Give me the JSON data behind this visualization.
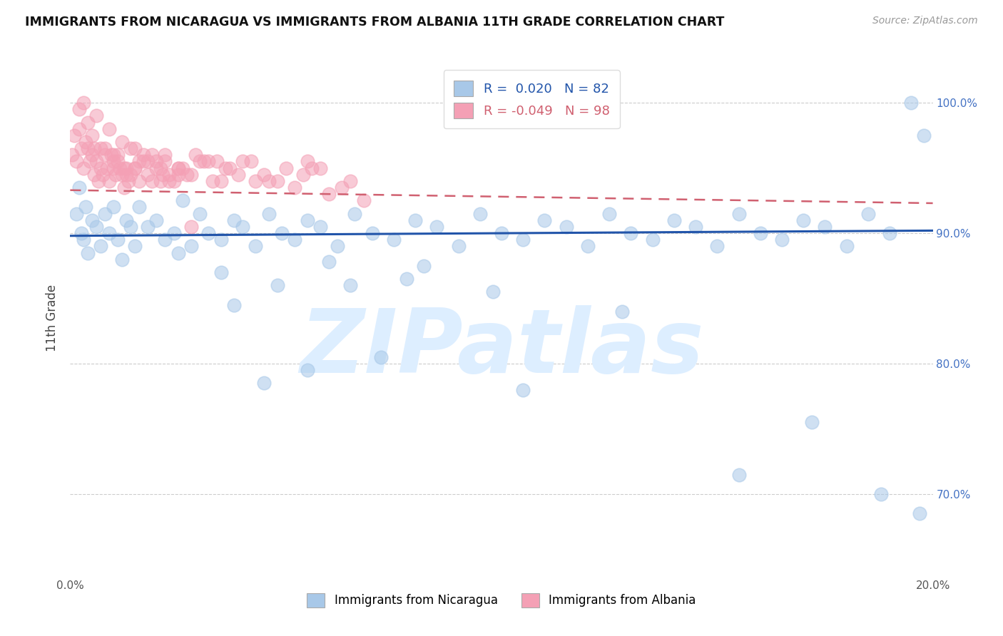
{
  "title": "IMMIGRANTS FROM NICARAGUA VS IMMIGRANTS FROM ALBANIA 11TH GRADE CORRELATION CHART",
  "source": "Source: ZipAtlas.com",
  "ylabel": "11th Grade",
  "color_nicaragua": "#a8c8e8",
  "color_albania": "#f4a0b5",
  "trendline_nicaragua_color": "#2255aa",
  "trendline_albania_color": "#d06070",
  "legend_label_nicaragua": "Immigrants from Nicaragua",
  "legend_label_albania": "Immigrants from Albania",
  "watermark": "ZIPatlas",
  "watermark_color": "#ddeeff",
  "xmin": 0.0,
  "xmax": 20.0,
  "ymin": 64.0,
  "ymax": 103.0,
  "yticks": [
    70.0,
    80.0,
    90.0,
    100.0
  ],
  "xticks": [
    0.0,
    20.0
  ],
  "nic_line_x0": 0.0,
  "nic_line_x1": 20.0,
  "nic_line_y0": 89.8,
  "nic_line_y1": 90.2,
  "alb_line_x0": 0.0,
  "alb_line_x1": 20.0,
  "alb_line_y0": 93.3,
  "alb_line_y1": 92.3,
  "nicaragua_x": [
    0.15,
    0.2,
    0.25,
    0.3,
    0.35,
    0.4,
    0.5,
    0.6,
    0.7,
    0.8,
    0.9,
    1.0,
    1.1,
    1.2,
    1.3,
    1.4,
    1.5,
    1.6,
    1.8,
    2.0,
    2.2,
    2.4,
    2.6,
    2.8,
    3.0,
    3.2,
    3.5,
    3.8,
    4.0,
    4.3,
    4.6,
    4.9,
    5.2,
    5.5,
    5.8,
    6.2,
    6.6,
    7.0,
    7.5,
    8.0,
    8.5,
    9.0,
    9.5,
    10.0,
    10.5,
    11.0,
    11.5,
    12.0,
    12.5,
    13.0,
    13.5,
    14.0,
    14.5,
    15.0,
    15.5,
    16.0,
    16.5,
    17.0,
    17.5,
    18.0,
    18.5,
    19.0,
    19.5,
    19.8,
    6.5,
    8.2,
    7.8,
    3.5,
    5.5,
    4.5,
    9.8,
    12.8,
    17.2,
    19.7,
    2.5,
    4.8,
    6.0,
    3.8,
    7.2,
    10.5,
    15.5,
    18.8
  ],
  "nicaragua_y": [
    91.5,
    93.5,
    90.0,
    89.5,
    92.0,
    88.5,
    91.0,
    90.5,
    89.0,
    91.5,
    90.0,
    92.0,
    89.5,
    88.0,
    91.0,
    90.5,
    89.0,
    92.0,
    90.5,
    91.0,
    89.5,
    90.0,
    92.5,
    89.0,
    91.5,
    90.0,
    89.5,
    91.0,
    90.5,
    89.0,
    91.5,
    90.0,
    89.5,
    91.0,
    90.5,
    89.0,
    91.5,
    90.0,
    89.5,
    91.0,
    90.5,
    89.0,
    91.5,
    90.0,
    89.5,
    91.0,
    90.5,
    89.0,
    91.5,
    90.0,
    89.5,
    91.0,
    90.5,
    89.0,
    91.5,
    90.0,
    89.5,
    91.0,
    90.5,
    89.0,
    91.5,
    90.0,
    100.0,
    97.5,
    86.0,
    87.5,
    86.5,
    87.0,
    79.5,
    78.5,
    85.5,
    84.0,
    75.5,
    68.5,
    88.5,
    86.0,
    87.8,
    84.5,
    80.5,
    78.0,
    71.5,
    70.0
  ],
  "albania_x": [
    0.05,
    0.1,
    0.15,
    0.2,
    0.25,
    0.3,
    0.35,
    0.4,
    0.45,
    0.5,
    0.55,
    0.6,
    0.65,
    0.7,
    0.75,
    0.8,
    0.85,
    0.9,
    0.95,
    1.0,
    1.05,
    1.1,
    1.15,
    1.2,
    1.25,
    1.3,
    1.35,
    1.4,
    1.5,
    1.6,
    1.7,
    1.8,
    1.9,
    2.0,
    2.1,
    2.2,
    2.3,
    2.5,
    2.7,
    2.9,
    3.1,
    3.3,
    3.6,
    3.9,
    4.2,
    4.6,
    5.0,
    5.4,
    5.8,
    6.3,
    0.3,
    0.6,
    0.9,
    1.2,
    1.5,
    1.8,
    2.1,
    2.4,
    0.2,
    0.5,
    0.8,
    1.1,
    1.4,
    1.7,
    2.0,
    2.3,
    2.6,
    0.4,
    0.7,
    1.0,
    1.3,
    1.6,
    1.9,
    2.2,
    2.5,
    2.8,
    3.2,
    3.5,
    4.0,
    4.5,
    5.2,
    5.6,
    6.0,
    6.5,
    1.0,
    1.5,
    2.5,
    3.0,
    4.8,
    3.7,
    0.55,
    1.25,
    2.15,
    3.4,
    4.3,
    5.5,
    2.8,
    6.8
  ],
  "albania_y": [
    96.0,
    97.5,
    95.5,
    98.0,
    96.5,
    95.0,
    97.0,
    96.5,
    95.5,
    96.0,
    94.5,
    95.5,
    94.0,
    95.0,
    94.5,
    96.5,
    95.0,
    94.0,
    96.0,
    95.5,
    94.5,
    96.0,
    95.0,
    94.5,
    93.5,
    95.0,
    94.0,
    96.5,
    95.0,
    94.0,
    95.5,
    94.5,
    96.0,
    95.0,
    94.0,
    95.5,
    94.5,
    95.0,
    94.5,
    96.0,
    95.5,
    94.0,
    95.0,
    94.5,
    95.5,
    94.0,
    95.0,
    94.5,
    95.0,
    93.5,
    100.0,
    99.0,
    98.0,
    97.0,
    96.5,
    95.5,
    95.0,
    94.0,
    99.5,
    97.5,
    96.0,
    95.5,
    94.5,
    96.0,
    95.5,
    94.0,
    95.0,
    98.5,
    96.5,
    95.0,
    94.5,
    95.5,
    94.0,
    96.0,
    95.0,
    94.5,
    95.5,
    94.0,
    95.5,
    94.5,
    93.5,
    95.0,
    93.0,
    94.0,
    96.0,
    95.0,
    94.5,
    95.5,
    94.0,
    95.0,
    96.5,
    95.0,
    94.5,
    95.5,
    94.0,
    95.5,
    90.5,
    92.5
  ]
}
